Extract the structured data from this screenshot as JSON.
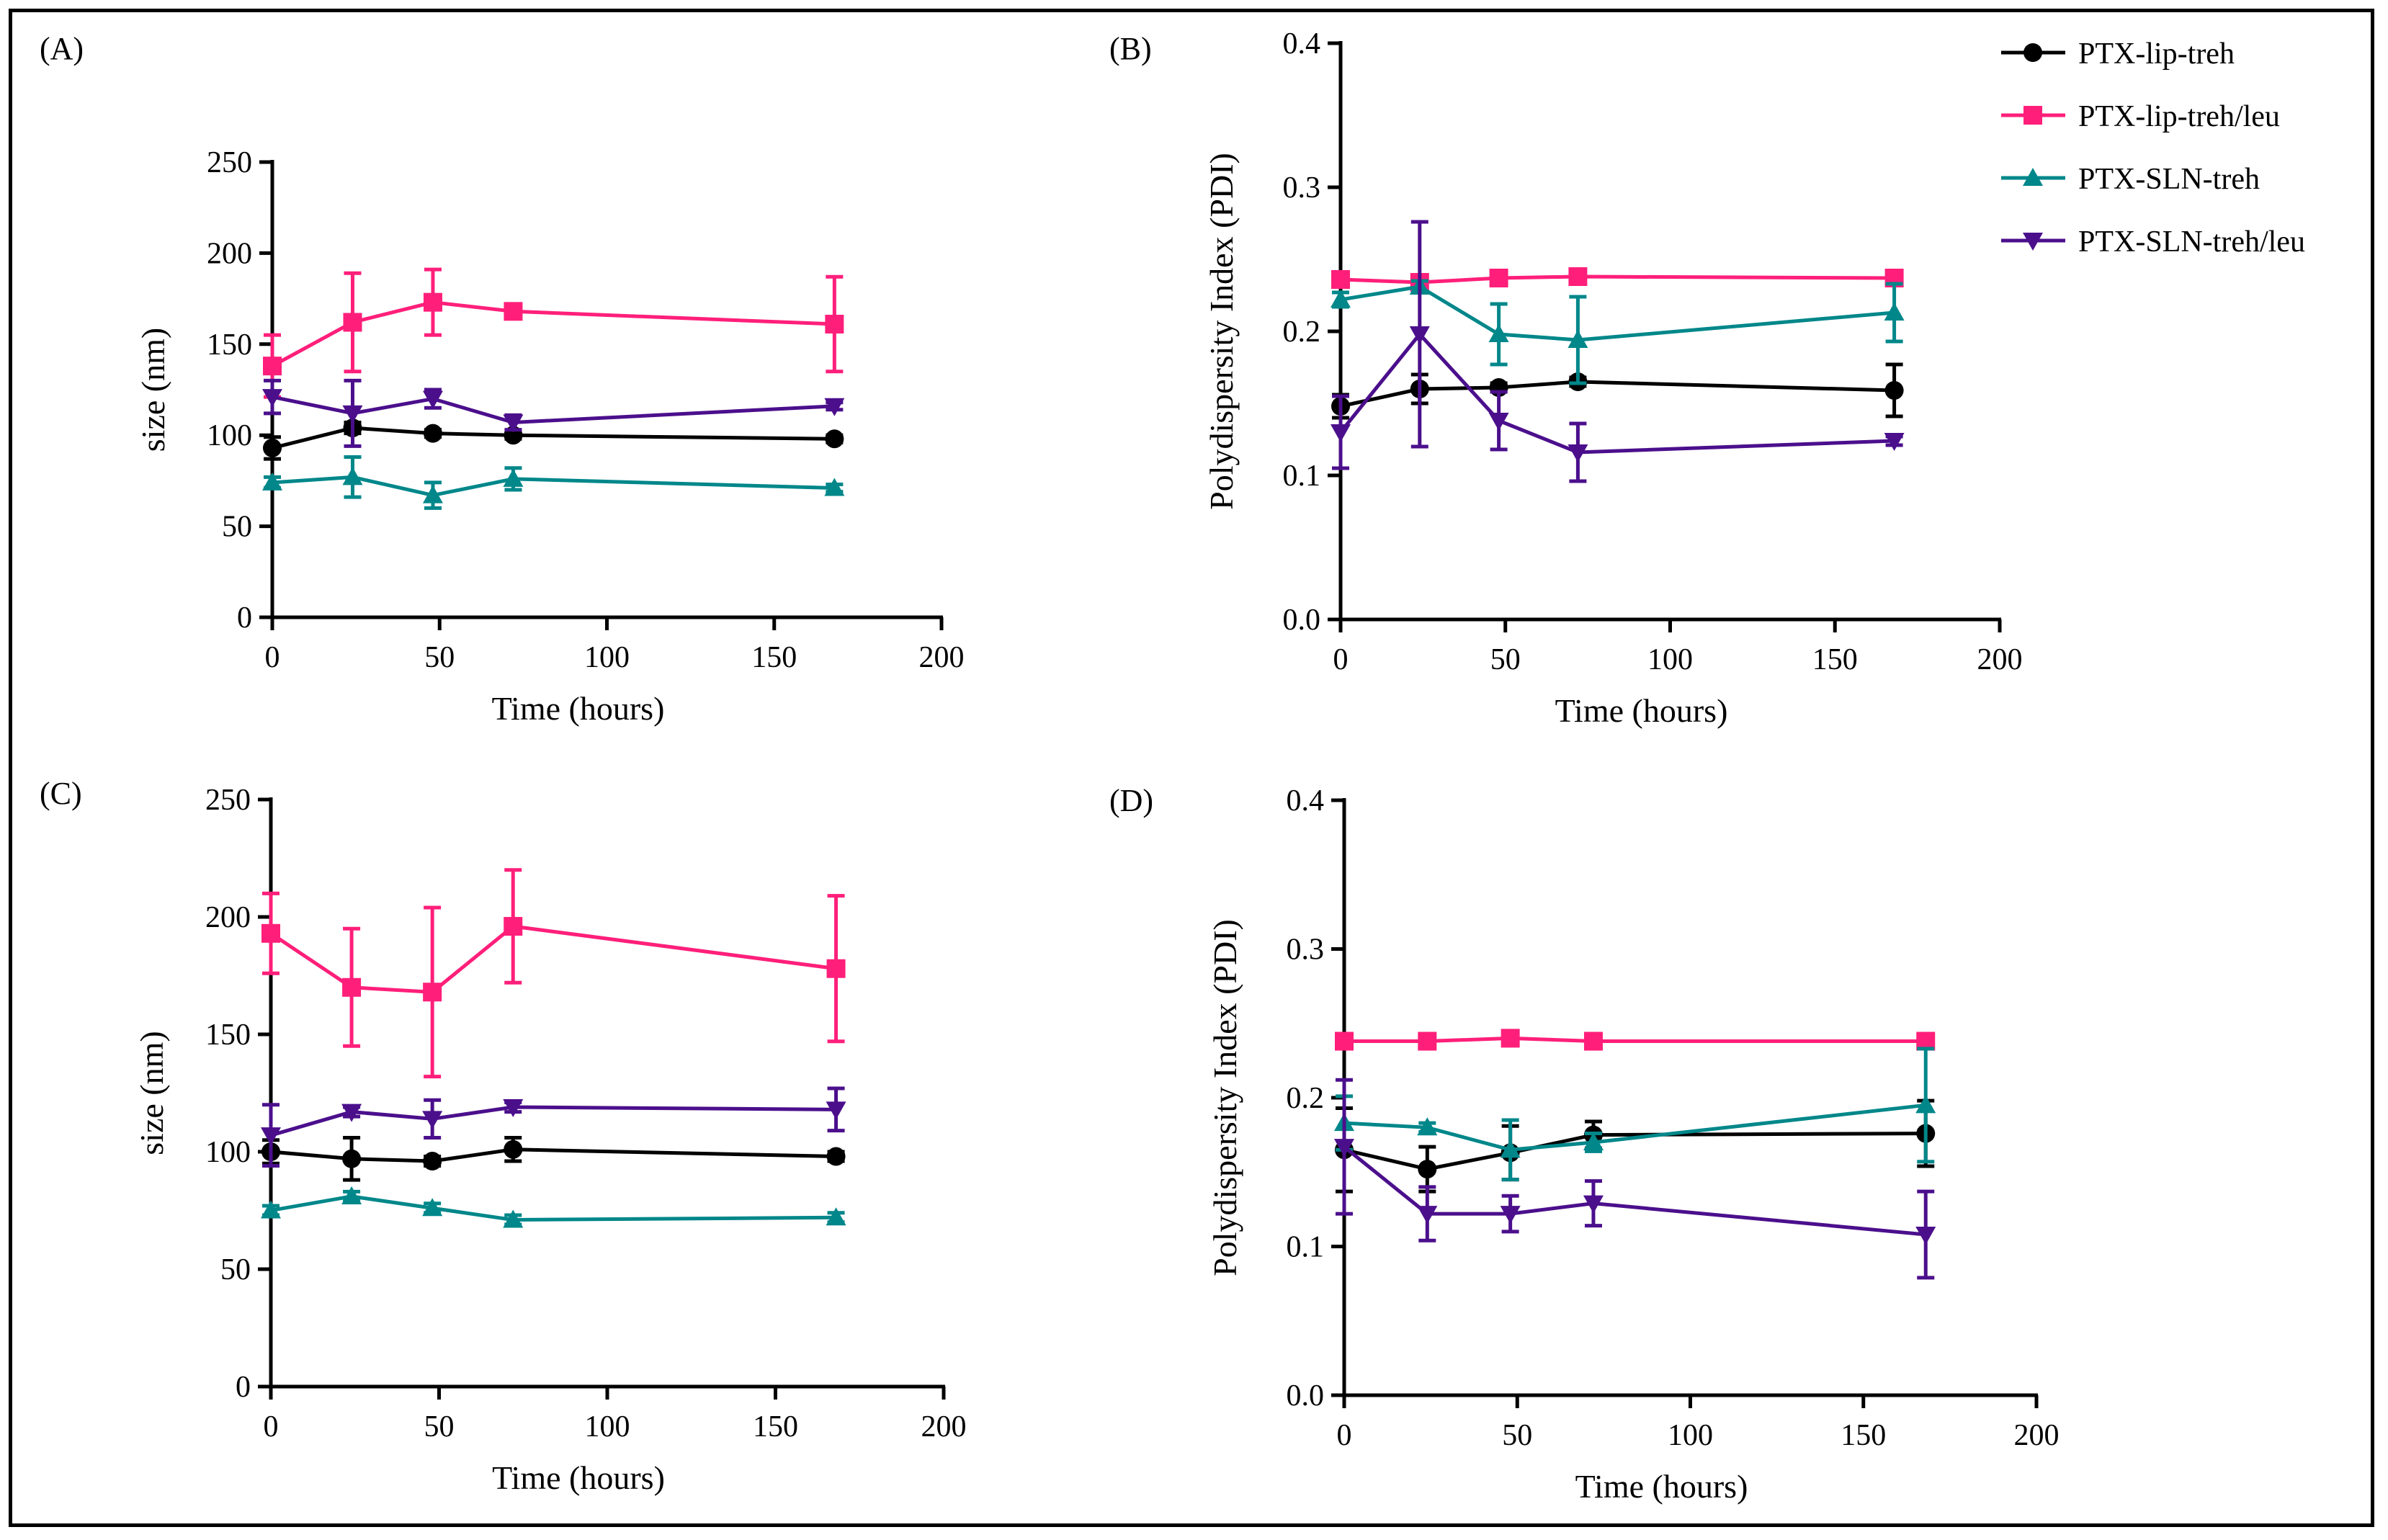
{
  "series_styles": [
    {
      "name": "PTX-lip-treh",
      "color": "#000000",
      "marker": "circle"
    },
    {
      "name": "PTX-lip-treh/leu",
      "color": "#ff1f7a",
      "marker": "square"
    },
    {
      "name": "PTX-SLN-treh",
      "color": "#00878a",
      "marker": "triangle-up"
    },
    {
      "name": "PTX-SLN-treh/leu",
      "color": "#4b0f8c",
      "marker": "triangle-down"
    }
  ],
  "chart_data": [
    {
      "panel": "(A)",
      "type": "line",
      "xlabel": "Time (hours)",
      "ylabel": "size (nm)",
      "xlim": [
        0,
        200
      ],
      "ylim": [
        0,
        250
      ],
      "xticks": [
        "0",
        "50",
        "100",
        "150",
        "200"
      ],
      "yticks": [
        "0",
        "50",
        "100",
        "150",
        "200",
        "250"
      ],
      "x": [
        0,
        24,
        48,
        72,
        168
      ],
      "series": [
        {
          "name": "PTX-lip-treh",
          "values": [
            93,
            104,
            101,
            100,
            98
          ],
          "errors": [
            6,
            3,
            2,
            2,
            2
          ]
        },
        {
          "name": "PTX-lip-treh/leu",
          "values": [
            138,
            162,
            173,
            168,
            161
          ],
          "errors": [
            17,
            27,
            18,
            4,
            26
          ]
        },
        {
          "name": "PTX-SLN-treh",
          "values": [
            74,
            77,
            67,
            76,
            71
          ],
          "errors": [
            3,
            11,
            7,
            6,
            2
          ]
        },
        {
          "name": "PTX-SLN-treh/leu",
          "values": [
            121,
            112,
            120,
            107,
            116
          ],
          "errors": [
            9,
            18,
            5,
            4,
            2
          ]
        }
      ]
    },
    {
      "panel": "(B)",
      "type": "line",
      "xlabel": "Time (hours)",
      "ylabel": "Polydispersity Index (PDI)",
      "xlim": [
        0,
        200
      ],
      "ylim": [
        0,
        0.4
      ],
      "xticks": [
        "0",
        "50",
        "100",
        "150",
        "200"
      ],
      "yticks": [
        "0.0",
        "0.1",
        "0.2",
        "0.3",
        "0.4"
      ],
      "x": [
        0,
        24,
        48,
        72,
        168
      ],
      "series": [
        {
          "name": "PTX-lip-treh",
          "values": [
            0.148,
            0.16,
            0.161,
            0.165,
            0.159
          ],
          "errors": [
            0.008,
            0.01,
            0.003,
            0.003,
            0.018
          ]
        },
        {
          "name": "PTX-lip-treh/leu",
          "values": [
            0.236,
            0.234,
            0.237,
            0.238,
            0.237
          ],
          "errors": [
            0.002,
            0.002,
            0.002,
            0.002,
            0.002
          ]
        },
        {
          "name": "PTX-SLN-treh",
          "values": [
            0.222,
            0.231,
            0.198,
            0.194,
            0.213
          ],
          "errors": [
            0.005,
            0.004,
            0.021,
            0.03,
            0.02
          ]
        },
        {
          "name": "PTX-SLN-treh/leu",
          "values": [
            0.13,
            0.198,
            0.138,
            0.116,
            0.124
          ],
          "errors": [
            0.025,
            0.078,
            0.02,
            0.02,
            0.003
          ]
        }
      ]
    },
    {
      "panel": "(C)",
      "type": "line",
      "xlabel": "Time (hours)",
      "ylabel": "size (nm)",
      "xlim": [
        0,
        200
      ],
      "ylim": [
        0,
        250
      ],
      "xticks": [
        "0",
        "50",
        "100",
        "150",
        "200"
      ],
      "yticks": [
        "0",
        "50",
        "100",
        "150",
        "200",
        "250"
      ],
      "x": [
        0,
        24,
        48,
        72,
        168
      ],
      "series": [
        {
          "name": "PTX-lip-treh",
          "values": [
            100,
            97,
            96,
            101,
            98
          ],
          "errors": [
            5,
            9,
            2,
            5,
            2
          ]
        },
        {
          "name": "PTX-lip-treh/leu",
          "values": [
            193,
            170,
            168,
            196,
            178
          ],
          "errors": [
            17,
            25,
            36,
            24,
            31
          ]
        },
        {
          "name": "PTX-SLN-treh",
          "values": [
            75,
            81,
            76,
            71,
            72
          ],
          "errors": [
            2,
            2,
            2,
            2,
            2
          ]
        },
        {
          "name": "PTX-SLN-treh/leu",
          "values": [
            107,
            117,
            114,
            119,
            118
          ],
          "errors": [
            13,
            2,
            8,
            2,
            9
          ]
        }
      ]
    },
    {
      "panel": "(D)",
      "type": "line",
      "xlabel": "Time (hours)",
      "ylabel": "Polydispersity Index (PDI)",
      "xlim": [
        0,
        200
      ],
      "ylim": [
        0,
        0.4
      ],
      "xticks": [
        "0",
        "50",
        "100",
        "150",
        "200"
      ],
      "yticks": [
        "0.0",
        "0.1",
        "0.2",
        "0.3",
        "0.4"
      ],
      "x": [
        0,
        24,
        48,
        72,
        168
      ],
      "series": [
        {
          "name": "PTX-lip-treh",
          "values": [
            0.165,
            0.152,
            0.163,
            0.175,
            0.176
          ],
          "errors": [
            0.028,
            0.015,
            0.018,
            0.009,
            0.022
          ]
        },
        {
          "name": "PTX-lip-treh/leu",
          "values": [
            0.238,
            0.238,
            0.24,
            0.238,
            0.238
          ],
          "errors": [
            0.002,
            0.002,
            0.002,
            0.002,
            0.002
          ]
        },
        {
          "name": "PTX-SLN-treh",
          "values": [
            0.183,
            0.18,
            0.165,
            0.17,
            0.195
          ],
          "errors": [
            0.018,
            0.003,
            0.02,
            0.006,
            0.038
          ]
        },
        {
          "name": "PTX-SLN-treh/leu",
          "values": [
            0.167,
            0.122,
            0.122,
            0.129,
            0.108
          ],
          "errors": [
            0.045,
            0.018,
            0.012,
            0.015,
            0.029
          ]
        }
      ]
    }
  ]
}
